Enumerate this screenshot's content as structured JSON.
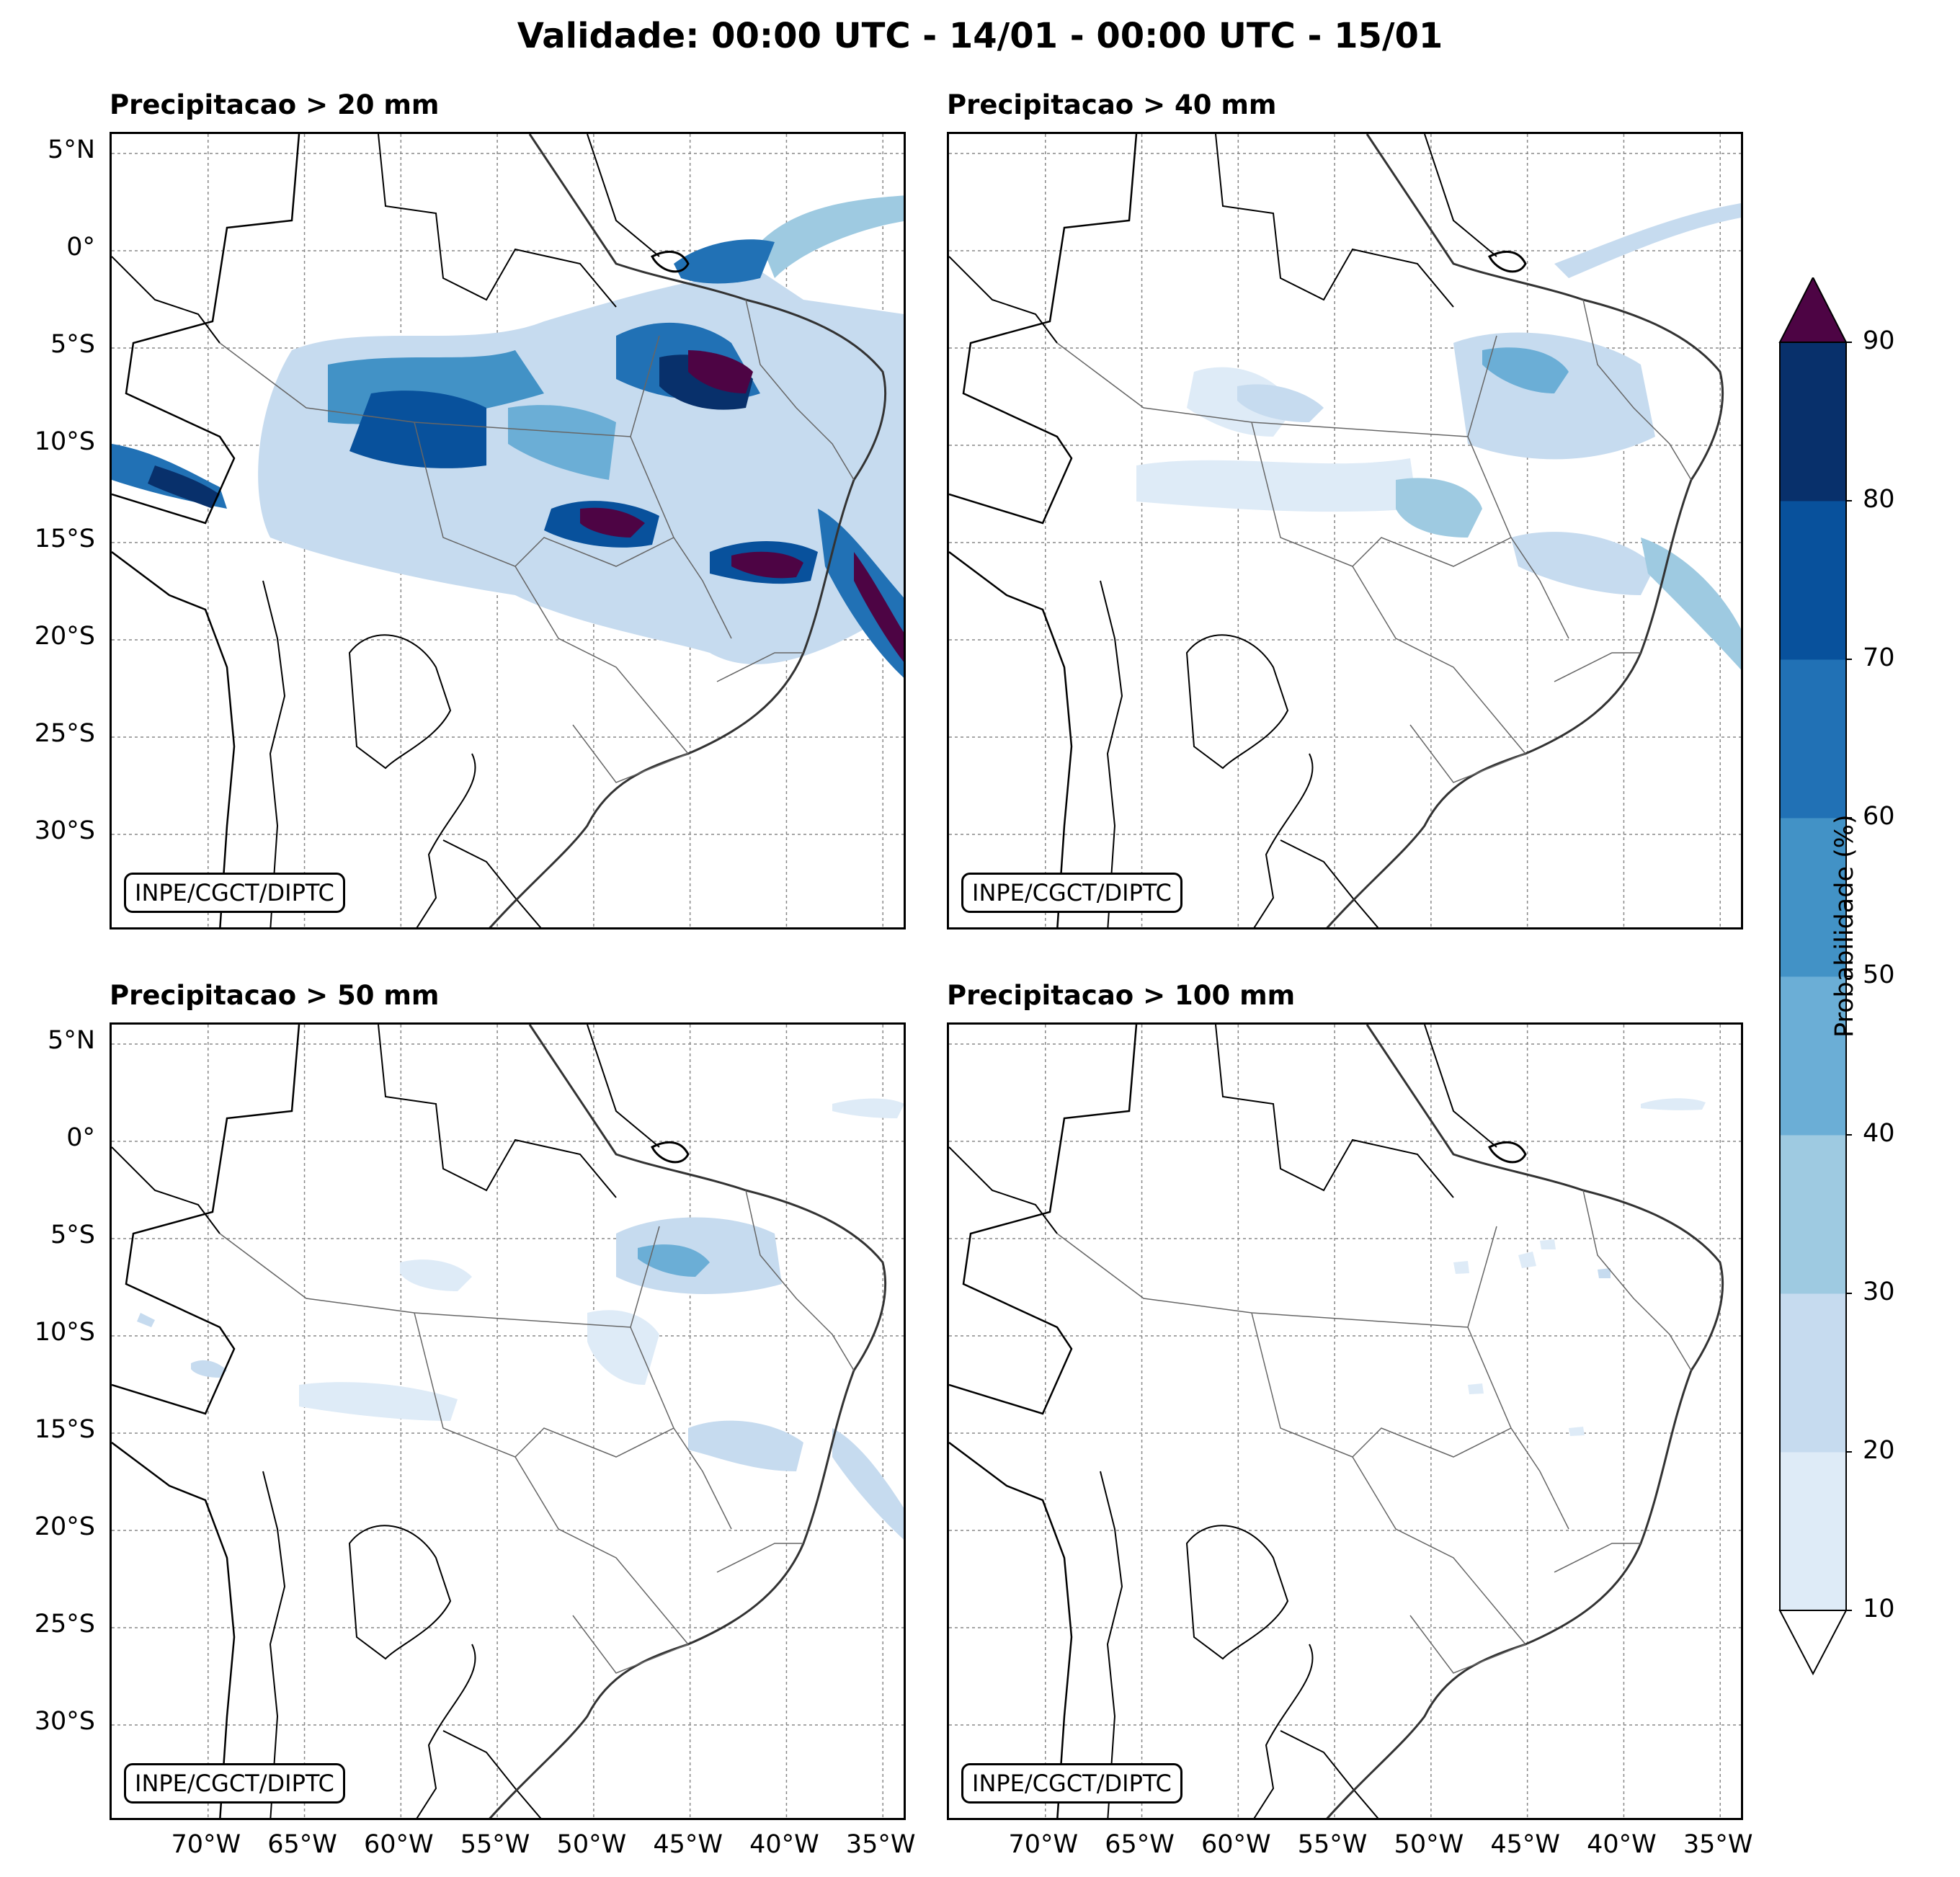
{
  "figure": {
    "title": "Validade: 00:00 UTC - 14/01 - 00:00 UTC - 15/01",
    "credit": "INPE/CGCT/DIPTC"
  },
  "panels": [
    {
      "id": "p20",
      "title": "Precipitacao > 20 mm"
    },
    {
      "id": "p40",
      "title": "Precipitacao > 40 mm"
    },
    {
      "id": "p50",
      "title": "Precipitacao > 50 mm"
    },
    {
      "id": "p100",
      "title": "Precipitacao > 100 mm"
    }
  ],
  "axes": {
    "lat_ticks": [
      "5°N",
      "0°",
      "5°S",
      "10°S",
      "15°S",
      "20°S",
      "25°S",
      "30°S"
    ],
    "lon_ticks": [
      "70°W",
      "65°W",
      "60°W",
      "55°W",
      "50°W",
      "45°W",
      "40°W",
      "35°W"
    ]
  },
  "colorbar": {
    "label": "Probabilidade (%)",
    "ticks": [
      "10",
      "20",
      "30",
      "40",
      "50",
      "60",
      "70",
      "80",
      "90"
    ],
    "colors": [
      "#deebf7",
      "#c6dbef",
      "#9ecae1",
      "#6baed6",
      "#4292c6",
      "#2171b5",
      "#08519c",
      "#08306b"
    ],
    "over_color": "#4d0444",
    "under_color": "#ffffff"
  }
}
